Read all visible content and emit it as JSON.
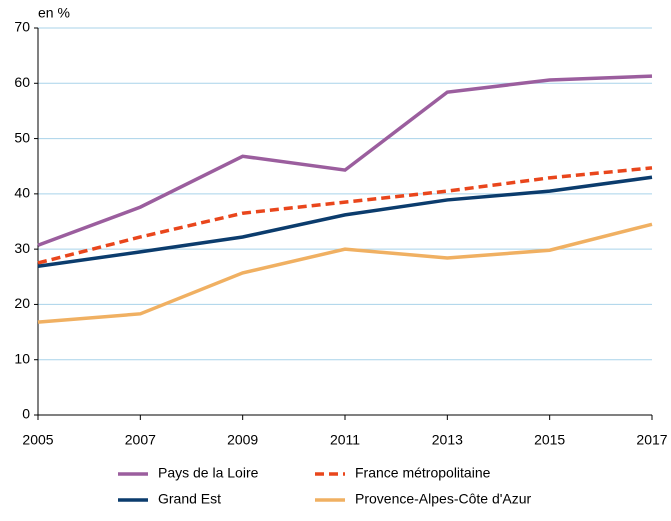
{
  "chart_data": {
    "type": "line",
    "y_label": "en %",
    "x": [
      2005,
      2007,
      2009,
      2011,
      2013,
      2015,
      2017
    ],
    "series": [
      {
        "name": "Pays de la Loire",
        "color": "#9b5e9e",
        "dash": false,
        "values": [
          30.7,
          37.6,
          46.8,
          44.3,
          58.4,
          60.6,
          61.3
        ]
      },
      {
        "name": "France métropolitaine",
        "color": "#e9461c",
        "dash": true,
        "values": [
          27.5,
          32.2,
          36.5,
          38.5,
          40.5,
          42.9,
          44.7
        ]
      },
      {
        "name": "Grand Est",
        "color": "#0b3c6d",
        "dash": false,
        "values": [
          26.9,
          29.5,
          32.2,
          36.2,
          38.9,
          40.5,
          43.0
        ]
      },
      {
        "name": "Provence-Alpes-Côte d'Azur",
        "color": "#f0b062",
        "dash": false,
        "values": [
          16.8,
          18.3,
          25.7,
          30.0,
          28.4,
          29.8,
          34.5
        ]
      }
    ],
    "xlim": [
      2005,
      2017
    ],
    "xticks": [
      2005,
      2007,
      2009,
      2011,
      2013,
      2015,
      2017
    ],
    "ylim": [
      0,
      70
    ],
    "yticks": [
      0,
      10,
      20,
      30,
      40,
      50,
      60,
      70
    ],
    "grid": true
  }
}
